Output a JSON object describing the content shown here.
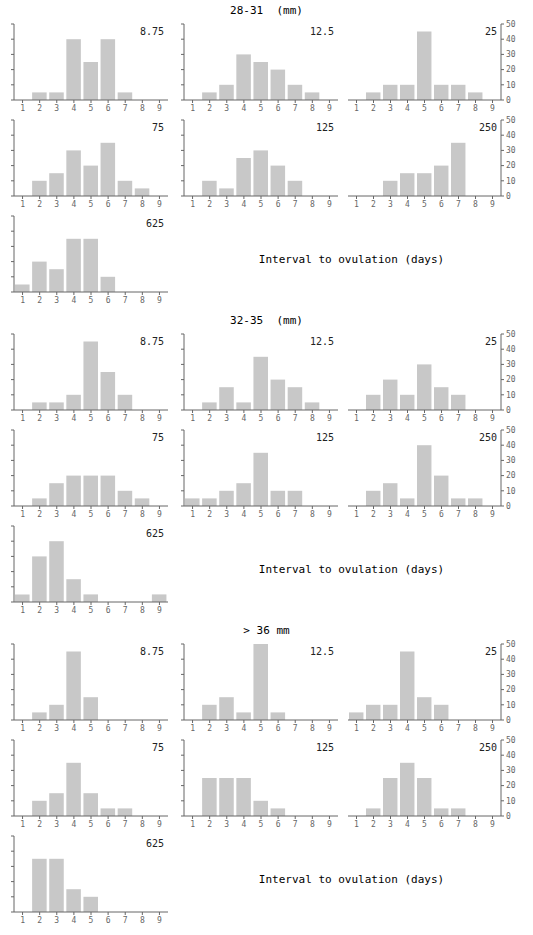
{
  "chart_data": [
    {
      "type": "bar",
      "title": "28-31  (mm)",
      "xlabel": "Interval to ovulation (days)",
      "x": [
        1,
        2,
        3,
        4,
        5,
        6,
        7,
        8,
        9
      ],
      "xlim": [
        0.5,
        9.5
      ],
      "xticks": [
        1,
        2,
        3,
        4,
        5,
        6,
        7,
        8,
        9
      ],
      "ylim": [
        0,
        50
      ],
      "yticks": [
        0,
        10,
        20,
        30,
        40,
        50
      ],
      "color": "#c8c8c8",
      "panels": [
        {
          "annotation": "8.75",
          "values": [
            0,
            5,
            5,
            40,
            25,
            40,
            5,
            0,
            0
          ],
          "tick_labels": "x"
        },
        {
          "annotation": "12.5",
          "values": [
            0,
            5,
            10,
            30,
            25,
            20,
            10,
            5,
            0
          ],
          "tick_labels": "x"
        },
        {
          "annotation": "25",
          "values": [
            0,
            5,
            10,
            10,
            45,
            10,
            10,
            5,
            0
          ]
        },
        {
          "annotation": "75",
          "values": [
            0,
            10,
            15,
            30,
            20,
            35,
            10,
            5,
            0
          ],
          "tick_labels": "x"
        },
        {
          "annotation": "125",
          "values": [
            0,
            10,
            5,
            25,
            30,
            20,
            10,
            0,
            0
          ],
          "tick_labels": "x"
        },
        {
          "annotation": "250",
          "values": [
            0,
            0,
            10,
            15,
            15,
            20,
            35,
            0,
            0
          ]
        },
        {
          "annotation": "625",
          "values": [
            5,
            20,
            15,
            35,
            35,
            10,
            0,
            0,
            0
          ],
          "tick_labels": "x"
        }
      ]
    },
    {
      "type": "bar",
      "title": "32-35  (mm)",
      "xlabel": "Interval to ovulation (days)",
      "x": [
        1,
        2,
        3,
        4,
        5,
        6,
        7,
        8,
        9
      ],
      "xlim": [
        0.5,
        9.5
      ],
      "xticks": [
        1,
        2,
        3,
        4,
        5,
        6,
        7,
        8,
        9
      ],
      "ylim": [
        0,
        50
      ],
      "yticks": [
        0,
        10,
        20,
        30,
        40,
        50
      ],
      "color": "#c8c8c8",
      "panels": [
        {
          "annotation": "8.75",
          "values": [
            0,
            5,
            5,
            10,
            45,
            25,
            10,
            0,
            0
          ],
          "tick_labels": "x"
        },
        {
          "annotation": "12.5",
          "values": [
            0,
            5,
            15,
            5,
            35,
            20,
            15,
            5,
            0
          ],
          "tick_labels": "x"
        },
        {
          "annotation": "25",
          "values": [
            0,
            10,
            20,
            10,
            30,
            15,
            10,
            0,
            0
          ]
        },
        {
          "annotation": "75",
          "values": [
            0,
            5,
            15,
            20,
            20,
            20,
            10,
            5,
            0
          ],
          "tick_labels": "x"
        },
        {
          "annotation": "125",
          "values": [
            5,
            5,
            10,
            15,
            35,
            10,
            10,
            0,
            0
          ],
          "tick_labels": "x"
        },
        {
          "annotation": "250",
          "values": [
            0,
            10,
            15,
            5,
            40,
            20,
            5,
            5,
            0
          ]
        },
        {
          "annotation": "625",
          "values": [
            5,
            30,
            40,
            15,
            5,
            0,
            0,
            0,
            5
          ],
          "tick_labels": "x"
        }
      ]
    },
    {
      "type": "bar",
      "title": "> 36 mm",
      "xlabel": "Interval to ovulation (days)",
      "x": [
        1,
        2,
        3,
        4,
        5,
        6,
        7,
        8,
        9
      ],
      "xlim": [
        0.5,
        9.5
      ],
      "xticks": [
        1,
        2,
        3,
        4,
        5,
        6,
        7,
        8,
        9
      ],
      "ylim": [
        0,
        50
      ],
      "yticks": [
        0,
        10,
        20,
        30,
        40,
        50
      ],
      "color": "#c8c8c8",
      "panels": [
        {
          "annotation": "8.75",
          "values": [
            0,
            5,
            10,
            45,
            15,
            0,
            0,
            0,
            0
          ],
          "tick_labels": "x"
        },
        {
          "annotation": "12.5",
          "values": [
            0,
            10,
            15,
            5,
            50,
            5,
            0,
            0,
            0
          ],
          "tick_labels": "x"
        },
        {
          "annotation": "25",
          "values": [
            5,
            10,
            10,
            45,
            15,
            10,
            0,
            0,
            0
          ]
        },
        {
          "annotation": "75",
          "values": [
            0,
            10,
            15,
            35,
            15,
            5,
            5,
            0,
            0
          ],
          "tick_labels": "x"
        },
        {
          "annotation": "125",
          "values": [
            0,
            25,
            25,
            25,
            10,
            5,
            0,
            0,
            0
          ],
          "tick_labels": "x"
        },
        {
          "annotation": "250",
          "values": [
            0,
            5,
            25,
            35,
            25,
            5,
            5,
            0,
            0
          ]
        },
        {
          "annotation": "625",
          "values": [
            0,
            35,
            35,
            15,
            10,
            0,
            0,
            0,
            0
          ],
          "tick_labels": "x"
        }
      ]
    }
  ]
}
